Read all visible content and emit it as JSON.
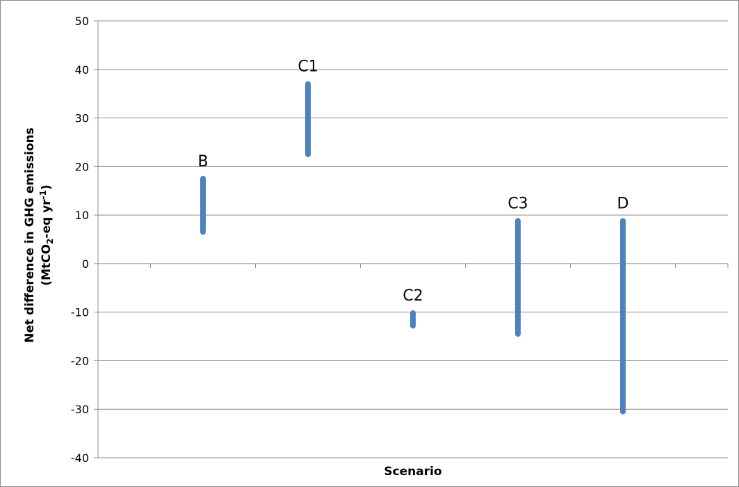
{
  "chart_data": {
    "type": "range",
    "xlabel": "Scenario",
    "ylabel_line1": "Net difference in GHG emissions",
    "ylabel_line2_parts": [
      "(MtCO",
      "2",
      "-eq yr",
      "-1",
      ")"
    ],
    "ylim": [
      -40,
      50
    ],
    "yticks": [
      50,
      40,
      30,
      20,
      10,
      0,
      -10,
      -20,
      -30,
      -40
    ],
    "ytick_labels": [
      "50",
      "40",
      "30",
      "20",
      "10",
      "0",
      "-10",
      "-20",
      "-30",
      "-40"
    ],
    "grid": true,
    "categories": [
      "B",
      "C1",
      "C2",
      "C3",
      "D"
    ],
    "ranges": [
      {
        "label": "B",
        "low": 6.5,
        "high": 17.5
      },
      {
        "label": "C1",
        "low": 22.5,
        "high": 37
      },
      {
        "label": "C2",
        "low": -12.8,
        "high": -10.2
      },
      {
        "label": "C3",
        "low": -14.5,
        "high": 8.8
      },
      {
        "label": "D",
        "low": -30.5,
        "high": 8.8
      }
    ],
    "bar_color": "#4f81bd",
    "grid_color": "#8c8c8c"
  }
}
